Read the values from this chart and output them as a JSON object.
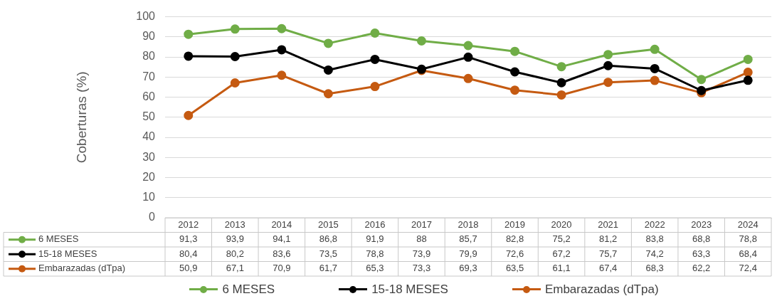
{
  "chart_data": {
    "type": "line",
    "ylabel": "Coberturas (%)",
    "categories": [
      "2012",
      "2013",
      "2014",
      "2015",
      "2016",
      "2017",
      "2018",
      "2019",
      "2020",
      "2021",
      "2022",
      "2023",
      "2024"
    ],
    "series": [
      {
        "name": "6 MESES",
        "color": "#70ad47",
        "values": [
          91.3,
          93.9,
          94.1,
          86.8,
          91.9,
          88,
          85.7,
          82.8,
          75.2,
          81.2,
          83.8,
          68.8,
          78.8
        ],
        "value_labels": [
          "91,3",
          "93,9",
          "94,1",
          "86,8",
          "91,9",
          "88",
          "85,7",
          "82,8",
          "75,2",
          "81,2",
          "83,8",
          "68,8",
          "78,8"
        ]
      },
      {
        "name": "15-18 MESES",
        "color": "#000000",
        "values": [
          80.4,
          80.2,
          83.6,
          73.5,
          78.8,
          73.9,
          79.9,
          72.6,
          67.2,
          75.7,
          74.2,
          63.3,
          68.4
        ],
        "value_labels": [
          "80,4",
          "80,2",
          "83,6",
          "73,5",
          "78,8",
          "73,9",
          "79,9",
          "72,6",
          "67,2",
          "75,7",
          "74,2",
          "63,3",
          "68,4"
        ]
      },
      {
        "name": "Embarazadas (dTpa)",
        "color": "#c55a11",
        "values": [
          50.9,
          67.1,
          70.9,
          61.7,
          65.3,
          73.3,
          69.3,
          63.5,
          61.1,
          67.4,
          68.3,
          62.2,
          72.4
        ],
        "value_labels": [
          "50,9",
          "67,1",
          "70,9",
          "61,7",
          "65,3",
          "73,3",
          "69,3",
          "63,5",
          "61,1",
          "67,4",
          "68,3",
          "62,2",
          "72,4"
        ]
      }
    ],
    "ylim": [
      0,
      100
    ],
    "yticks": [
      0,
      10,
      20,
      30,
      40,
      50,
      60,
      70,
      80,
      90,
      100
    ],
    "grid": "y",
    "legend": "bottom",
    "marker": "circle",
    "line_style": "solid"
  }
}
